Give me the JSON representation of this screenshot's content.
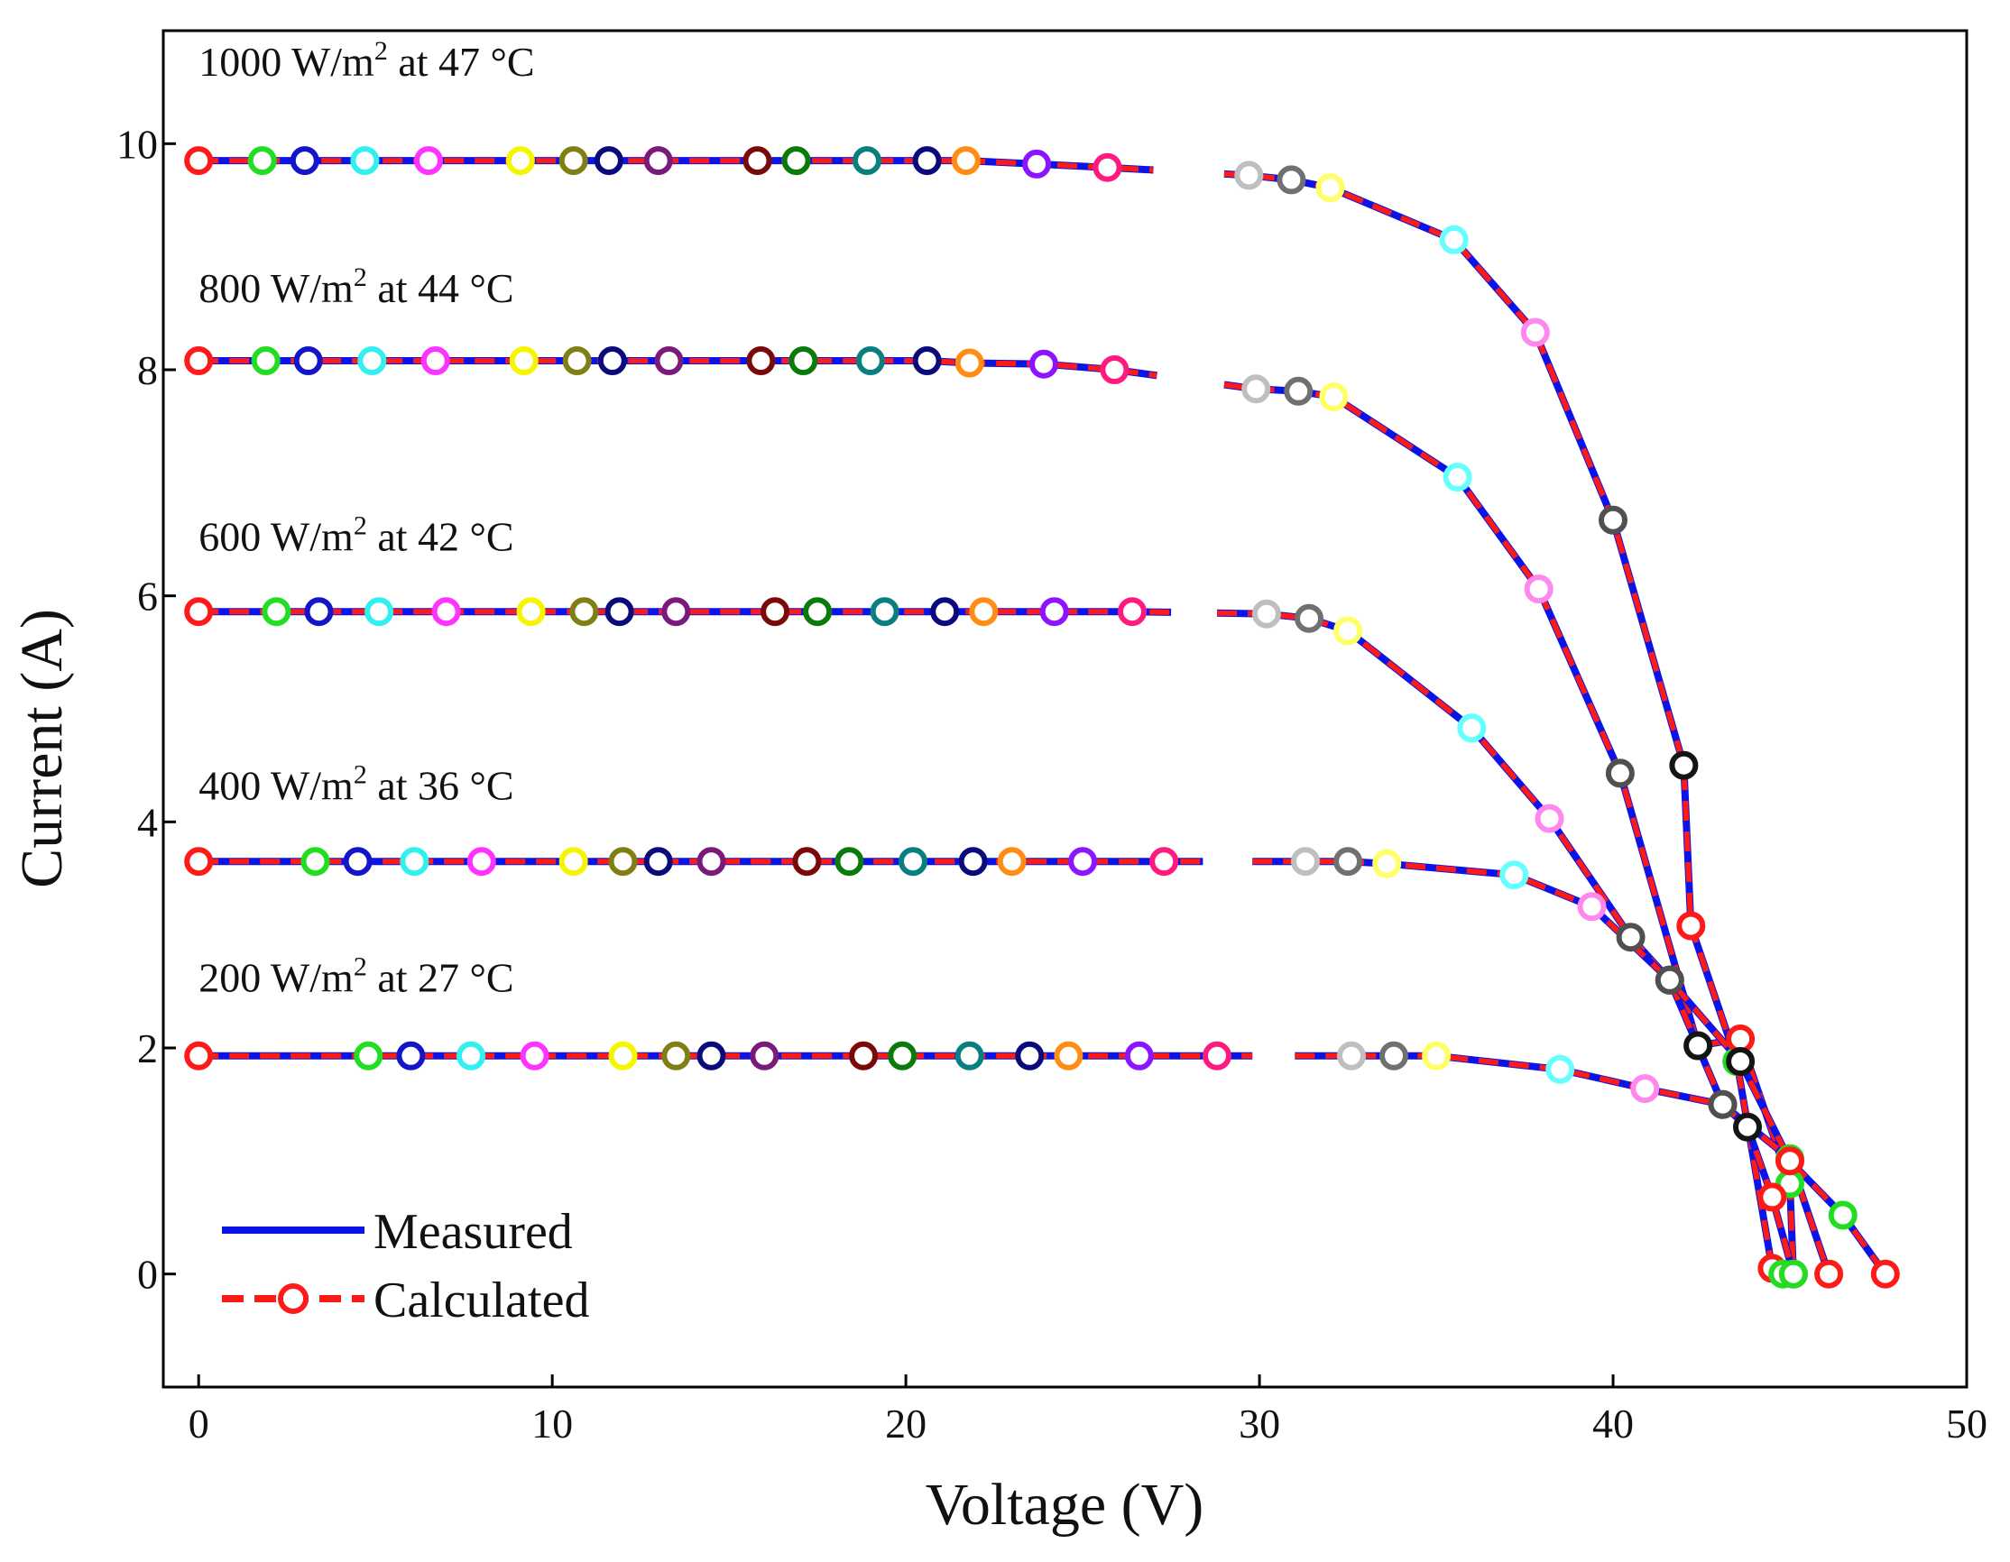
{
  "chart_data": {
    "type": "line",
    "xlabel": "Voltage (V)",
    "ylabel": "Current (A)",
    "xlim": [
      -1,
      50
    ],
    "ylim": [
      -1,
      11
    ],
    "x_ticks": [
      0,
      10,
      20,
      30,
      40,
      50
    ],
    "y_ticks": [
      0,
      2,
      4,
      6,
      8,
      10
    ],
    "legend": {
      "placement": "bottom-left",
      "entries": [
        {
          "label": "Measured",
          "style": "solid",
          "color": "#0a14e6"
        },
        {
          "label": "Calculated",
          "style": "dashed-with-circle",
          "color": "#ff1a1a"
        }
      ]
    },
    "colors": {
      "measured": "#0a14e6",
      "calculated": "#ff1a1a",
      "frame": "#000000"
    },
    "marker_palette": [
      "#ff1a1a",
      "#22dd22",
      "#1414c8",
      "#33f0f0",
      "#ff33ff",
      "#f5f500",
      "#7f7f14",
      "#0a0a7a",
      "#7a1a7a",
      "#7a0a0a",
      "#0a7a0a",
      "#0a7f7f",
      "#0a0a7a",
      "#ff8c14",
      "#8c14ff",
      "#ff1a80",
      "#bfbfbf",
      "#707070",
      "#ffff66",
      "#66ffff",
      "#ff88ee",
      "#505050",
      "#141414",
      "#ff1a1a",
      "#22dd22"
    ],
    "series": [
      {
        "name": "1000 W/m2 at 47 °C",
        "irradiance": "1000 W/m",
        "superscript": "2",
        "temperature": " at 47 °C",
        "label_value": [
          0,
          10.6
        ],
        "points": [
          [
            0,
            9.85
          ],
          [
            1.8,
            9.85
          ],
          [
            3.0,
            9.85
          ],
          [
            4.7,
            9.85
          ],
          [
            6.5,
            9.85
          ],
          [
            9.1,
            9.85
          ],
          [
            10.6,
            9.85
          ],
          [
            11.6,
            9.85
          ],
          [
            13.0,
            9.85
          ],
          [
            15.8,
            9.85
          ],
          [
            16.9,
            9.85
          ],
          [
            18.9,
            9.85
          ],
          [
            20.6,
            9.85
          ],
          [
            21.7,
            9.85
          ],
          [
            23.7,
            9.82
          ],
          [
            25.7,
            9.79
          ],
          [
            29.7,
            9.72
          ],
          [
            30.9,
            9.68
          ],
          [
            32.0,
            9.61
          ],
          [
            35.5,
            9.15
          ],
          [
            37.8,
            8.33
          ],
          [
            40.0,
            6.67
          ],
          [
            42.0,
            4.5
          ],
          [
            42.2,
            3.08
          ],
          [
            43.5,
            1.88
          ],
          [
            44.5,
            0.05
          ],
          [
            44.8,
            0.0
          ]
        ],
        "gap": [
          27.0,
          29.0
        ]
      },
      {
        "name": "800 W/m2 at 44 °C",
        "irradiance": "800 W/m",
        "superscript": "2",
        "temperature": " at 44 °C",
        "label_value": [
          0,
          8.6
        ],
        "points": [
          [
            0,
            8.08
          ],
          [
            1.9,
            8.08
          ],
          [
            3.1,
            8.08
          ],
          [
            4.9,
            8.08
          ],
          [
            6.7,
            8.08
          ],
          [
            9.2,
            8.08
          ],
          [
            10.7,
            8.08
          ],
          [
            11.7,
            8.08
          ],
          [
            13.3,
            8.08
          ],
          [
            15.9,
            8.08
          ],
          [
            17.1,
            8.08
          ],
          [
            19.0,
            8.08
          ],
          [
            20.6,
            8.08
          ],
          [
            21.8,
            8.06
          ],
          [
            23.9,
            8.05
          ],
          [
            25.9,
            8.0
          ],
          [
            29.9,
            7.83
          ],
          [
            31.1,
            7.81
          ],
          [
            32.1,
            7.76
          ],
          [
            35.6,
            7.05
          ],
          [
            37.9,
            6.06
          ],
          [
            40.2,
            4.43
          ],
          [
            42.4,
            2.02
          ],
          [
            43.6,
            2.08
          ],
          [
            45.0,
            0.8
          ],
          [
            45.1,
            0.0
          ]
        ],
        "gap": [
          27.1,
          29.0
        ]
      },
      {
        "name": "600 W/m2 at 42 °C",
        "irradiance": "600 W/m",
        "superscript": "2",
        "temperature": " at 42 °C",
        "label_value": [
          0,
          6.4
        ],
        "points": [
          [
            0,
            5.86
          ],
          [
            2.2,
            5.86
          ],
          [
            3.4,
            5.86
          ],
          [
            5.1,
            5.86
          ],
          [
            7.0,
            5.86
          ],
          [
            9.4,
            5.86
          ],
          [
            10.9,
            5.86
          ],
          [
            11.9,
            5.86
          ],
          [
            13.5,
            5.86
          ],
          [
            16.3,
            5.86
          ],
          [
            17.5,
            5.86
          ],
          [
            19.4,
            5.86
          ],
          [
            21.1,
            5.86
          ],
          [
            22.2,
            5.86
          ],
          [
            24.2,
            5.86
          ],
          [
            26.4,
            5.86
          ],
          [
            30.2,
            5.84
          ],
          [
            31.4,
            5.8
          ],
          [
            32.5,
            5.69
          ],
          [
            36.0,
            4.83
          ],
          [
            38.2,
            4.03
          ],
          [
            40.5,
            2.98
          ],
          [
            41.6,
            2.6
          ],
          [
            43.1,
            1.5
          ],
          [
            45.0,
            1.02
          ],
          [
            46.1,
            0.0
          ]
        ],
        "gap": [
          27.5,
          28.8
        ]
      },
      {
        "name": "400 W/m2 at 36 °C",
        "irradiance": "400 W/m",
        "superscript": "2",
        "temperature": " at 36 °C",
        "label_value": [
          0,
          4.2
        ],
        "points": [
          [
            0,
            3.65
          ],
          [
            3.3,
            3.65
          ],
          [
            4.5,
            3.65
          ],
          [
            6.1,
            3.65
          ],
          [
            8.0,
            3.65
          ],
          [
            10.6,
            3.65
          ],
          [
            12.0,
            3.65
          ],
          [
            13.0,
            3.65
          ],
          [
            14.5,
            3.65
          ],
          [
            17.2,
            3.65
          ],
          [
            18.4,
            3.65
          ],
          [
            20.2,
            3.65
          ],
          [
            21.9,
            3.65
          ],
          [
            23.0,
            3.65
          ],
          [
            25.0,
            3.65
          ],
          [
            27.3,
            3.65
          ],
          [
            31.3,
            3.65
          ],
          [
            32.5,
            3.65
          ],
          [
            33.6,
            3.63
          ],
          [
            37.2,
            3.53
          ],
          [
            39.4,
            3.25
          ],
          [
            41.6,
            2.6
          ],
          [
            43.6,
            1.88
          ],
          [
            45.0,
            1.0
          ],
          [
            46.5,
            0.52
          ],
          [
            47.7,
            0.0
          ]
        ],
        "gap": [
          28.4,
          29.8
        ]
      },
      {
        "name": "200 W/m2 at 27 °C",
        "irradiance": "200 W/m",
        "superscript": "2",
        "temperature": " at 27 °C",
        "label_value": [
          0,
          2.5
        ],
        "points": [
          [
            0,
            1.93
          ],
          [
            4.8,
            1.93
          ],
          [
            6.0,
            1.93
          ],
          [
            7.7,
            1.93
          ],
          [
            9.5,
            1.93
          ],
          [
            12.0,
            1.93
          ],
          [
            13.5,
            1.93
          ],
          [
            14.5,
            1.93
          ],
          [
            16.0,
            1.93
          ],
          [
            18.8,
            1.93
          ],
          [
            19.9,
            1.93
          ],
          [
            21.8,
            1.93
          ],
          [
            23.5,
            1.93
          ],
          [
            24.6,
            1.93
          ],
          [
            26.6,
            1.93
          ],
          [
            28.8,
            1.93
          ],
          [
            32.6,
            1.93
          ],
          [
            33.8,
            1.93
          ],
          [
            35.0,
            1.93
          ],
          [
            38.5,
            1.81
          ],
          [
            40.9,
            1.64
          ],
          [
            43.1,
            1.5
          ],
          [
            43.8,
            1.3
          ],
          [
            44.5,
            0.68
          ],
          [
            45.1,
            0.0
          ]
        ],
        "gap": [
          29.8,
          31.0
        ]
      }
    ]
  }
}
